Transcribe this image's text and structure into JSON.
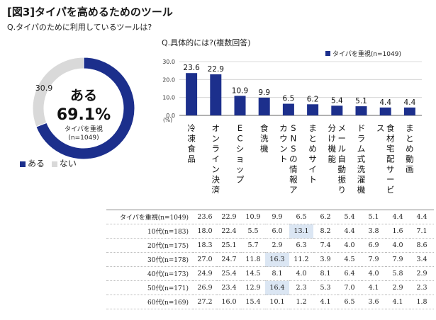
{
  "title": "[図3]タイパを高めるためのツール",
  "q1": "Q.タイパのために利用しているツールは?",
  "q2": "Q.具体的には?(複数回答)",
  "colors": {
    "navy": "#1c2f8c",
    "grey": "#d9d9d9"
  },
  "chart_data": [
    {
      "type": "pie",
      "center_label": "ある",
      "center_value": "69.1%",
      "center_sub1": "タイパを重視",
      "center_sub2": "(n=1049)",
      "slices": [
        {
          "name": "ある",
          "value": 69.1,
          "color": "#1c2f8c"
        },
        {
          "name": "ない",
          "value": 30.9,
          "color": "#d9d9d9"
        }
      ],
      "label_yes": "69.1",
      "label_no": "30.9",
      "legend_yes": "ある",
      "legend_no": "ない"
    },
    {
      "type": "bar",
      "legend": "タイパを重視(n=1049)",
      "unit": "(%)",
      "ylim": [
        0,
        30
      ],
      "yticks": [
        "0.0",
        "10.0",
        "20.0",
        "30.0"
      ],
      "categories": [
        "冷凍食品",
        "オンライン決済",
        "ECショップ",
        "食洗機",
        "SNSの情報アカウント",
        "まとめサイト",
        "メール自動振り分け機能",
        "ドラム式洗濯機",
        "食材宅配サービス",
        "まとめ動画"
      ],
      "values": [
        23.6,
        22.9,
        10.9,
        9.9,
        6.5,
        6.2,
        5.4,
        5.1,
        4.4,
        4.4
      ],
      "value_labels": [
        "23.6",
        "22.9",
        "10.9",
        "9.9",
        "6.5",
        "6.2",
        "5.4",
        "5.1",
        "4.4",
        "4.4"
      ]
    },
    {
      "type": "table",
      "rows": [
        {
          "label": "タイパを重視(n=1049)",
          "values": [
            "23.6",
            "22.9",
            "10.9",
            "9.9",
            "6.5",
            "6.2",
            "5.4",
            "5.1",
            "4.4",
            "4.4"
          ],
          "hl": []
        },
        {
          "label": "10代(n=183)",
          "values": [
            "18.0",
            "22.4",
            "5.5",
            "6.0",
            "13.1",
            "8.2",
            "4.4",
            "3.8",
            "1.6",
            "7.1"
          ],
          "hl": [
            4
          ]
        },
        {
          "label": "20代(n=175)",
          "values": [
            "18.3",
            "25.1",
            "5.7",
            "2.9",
            "6.3",
            "7.4",
            "4.0",
            "6.9",
            "4.0",
            "8.6"
          ],
          "hl": []
        },
        {
          "label": "30代(n=178)",
          "values": [
            "27.0",
            "24.7",
            "11.8",
            "16.3",
            "11.2",
            "3.9",
            "4.5",
            "7.9",
            "7.9",
            "3.4"
          ],
          "hl": [
            3
          ]
        },
        {
          "label": "40代(n=173)",
          "values": [
            "24.9",
            "25.4",
            "14.5",
            "8.1",
            "4.0",
            "8.1",
            "6.4",
            "4.0",
            "5.8",
            "2.9"
          ],
          "hl": []
        },
        {
          "label": "50代(n=171)",
          "values": [
            "26.9",
            "23.4",
            "12.9",
            "16.4",
            "2.3",
            "5.3",
            "7.0",
            "4.1",
            "2.9",
            "2.3"
          ],
          "hl": [
            3
          ]
        },
        {
          "label": "60代(n=169)",
          "values": [
            "27.2",
            "16.0",
            "15.4",
            "10.1",
            "1.2",
            "4.1",
            "6.5",
            "3.6",
            "4.1",
            "1.8"
          ],
          "hl": []
        }
      ]
    }
  ]
}
